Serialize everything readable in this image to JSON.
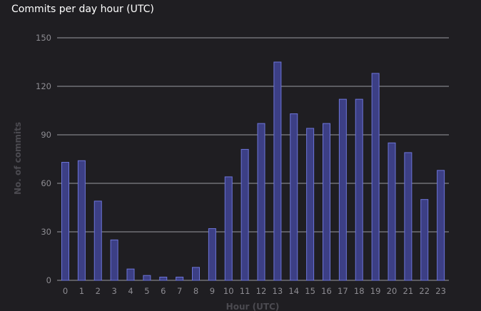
{
  "panel": {
    "title": "Commits per day hour (UTC)"
  },
  "colors": {
    "background": "#1f1e22",
    "grid": "#9a99a0",
    "bar_fill": "#3c3f85",
    "bar_stroke": "#6d75d8",
    "tick_text": "#8d8c92",
    "axis_title": "#4b4a50"
  },
  "chart_data": {
    "type": "bar",
    "title": "Commits per day hour (UTC)",
    "xlabel": "Hour (UTC)",
    "ylabel": "No. of commits",
    "ylim": [
      0,
      150
    ],
    "yticks": [
      0,
      30,
      60,
      90,
      120,
      150
    ],
    "grid": true,
    "legend": "none",
    "categories": [
      "0",
      "1",
      "2",
      "3",
      "4",
      "5",
      "6",
      "7",
      "8",
      "9",
      "10",
      "11",
      "12",
      "13",
      "14",
      "15",
      "16",
      "17",
      "18",
      "19",
      "20",
      "21",
      "22",
      "23"
    ],
    "values": [
      73,
      74,
      49,
      25,
      7,
      3,
      2,
      2,
      8,
      32,
      64,
      81,
      97,
      135,
      103,
      94,
      97,
      112,
      112,
      128,
      85,
      79,
      50,
      68
    ]
  }
}
